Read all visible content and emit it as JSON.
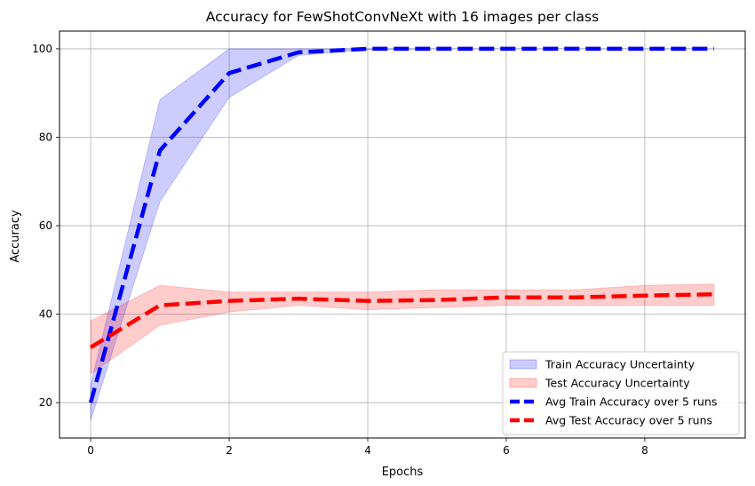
{
  "chart_data": {
    "type": "line",
    "title": "Accuracy for FewShotConvNeXt with 16 images per class",
    "xlabel": "Epochs",
    "ylabel": "Accuracy",
    "xlim": [
      -0.45,
      9.45
    ],
    "ylim": [
      12,
      104
    ],
    "xticks": [
      0,
      2,
      4,
      6,
      8
    ],
    "yticks": [
      20,
      40,
      60,
      80,
      100
    ],
    "grid": true,
    "legend_position": "lower-right",
    "x": [
      0,
      1,
      2,
      3,
      4,
      5,
      6,
      7,
      8,
      9
    ],
    "series": [
      {
        "name": "Avg Train Accuracy over 5 runs",
        "color": "#0000ff",
        "style": "dashed",
        "values": [
          20,
          77,
          94.5,
          99.2,
          100,
          100,
          100,
          100,
          100,
          100
        ],
        "band_lower": [
          16,
          65.5,
          89,
          98.5,
          99.8,
          100,
          100,
          100,
          100,
          100
        ],
        "band_upper": [
          24,
          88.5,
          100,
          100,
          100,
          100,
          100,
          100,
          100,
          100
        ],
        "band_name": "Train Accuracy Uncertainty",
        "band_color": "#0000ff"
      },
      {
        "name": "Avg Test Accuracy over 5 runs",
        "color": "#ff0000",
        "style": "dashed",
        "values": [
          32.5,
          42,
          43,
          43.5,
          43,
          43.2,
          43.8,
          43.8,
          44.2,
          44.5
        ],
        "band_lower": [
          26.5,
          37.5,
          40.5,
          42,
          41,
          41.5,
          42,
          42,
          42,
          42
        ],
        "band_upper": [
          38.5,
          46.5,
          45,
          45,
          45,
          45.5,
          45.5,
          45.5,
          46.5,
          46.8
        ],
        "band_name": "Test Accuracy Uncertainty",
        "band_color": "#ff0000"
      }
    ],
    "legend": [
      {
        "label": "Train Accuracy Uncertainty",
        "kind": "band",
        "color": "#0000ff"
      },
      {
        "label": "Test Accuracy Uncertainty",
        "kind": "band",
        "color": "#ff0000"
      },
      {
        "label": "Avg Train Accuracy over 5 runs",
        "kind": "line",
        "color": "#0000ff"
      },
      {
        "label": "Avg Test Accuracy over 5 runs",
        "kind": "line",
        "color": "#ff0000"
      }
    ]
  }
}
